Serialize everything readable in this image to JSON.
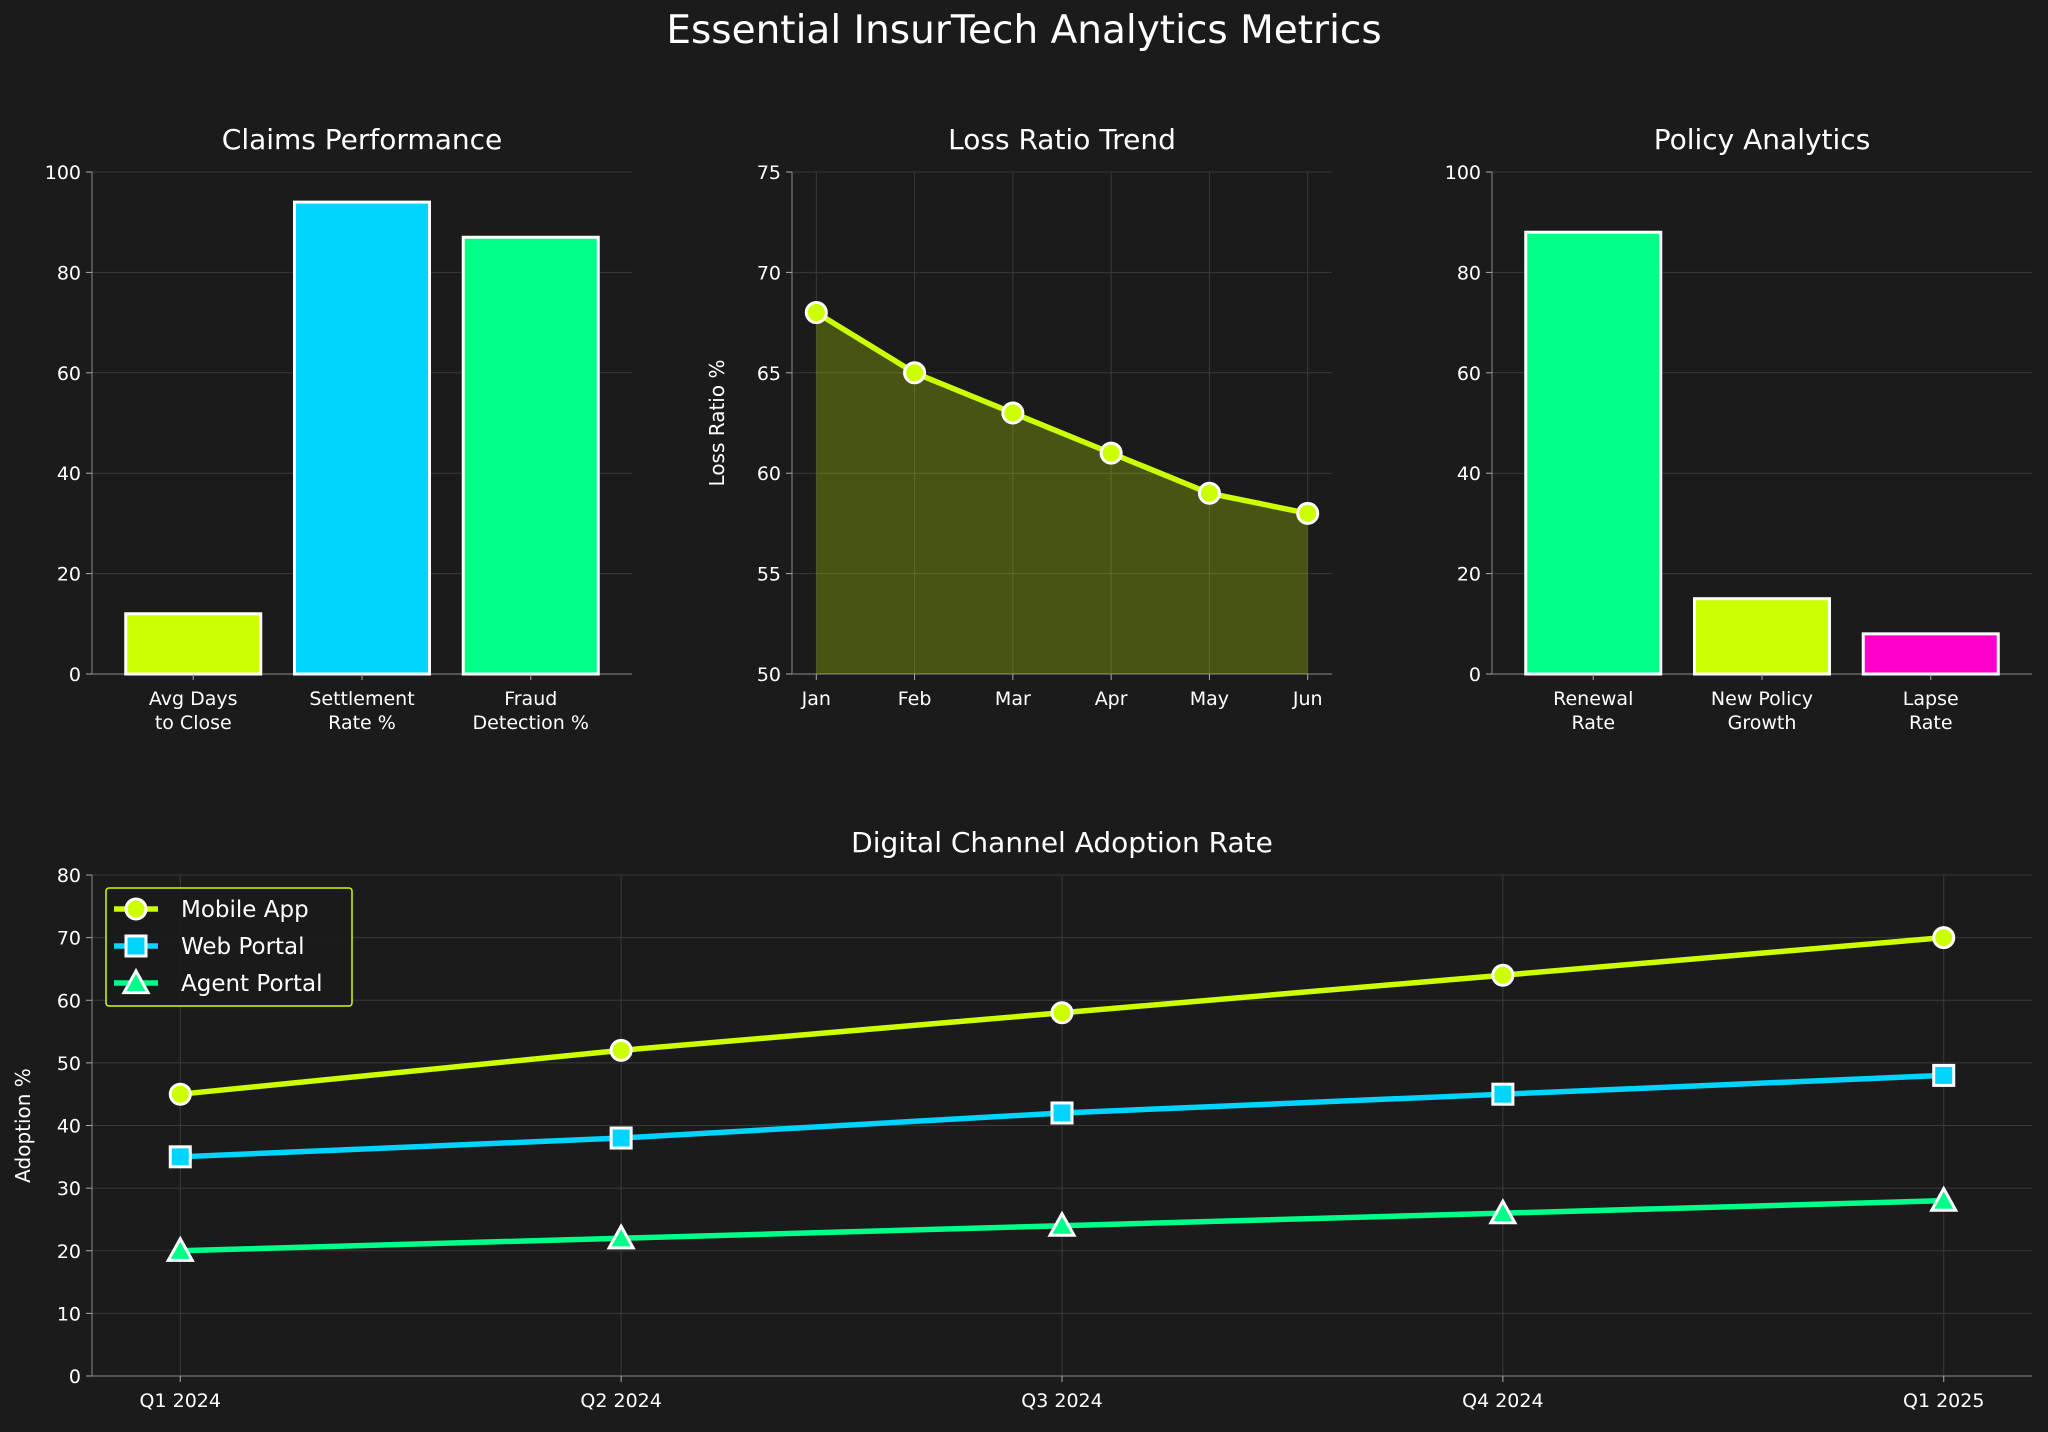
{
  "figure_title": "Essential InsurTech Analytics Metrics",
  "colors": {
    "background": "#1b1b1b",
    "lime": "#ccff00",
    "cyan": "#00d4ff",
    "green": "#00ff88",
    "magenta": "#ff00cc",
    "grid": "#3a3a3a",
    "spine": "#666666"
  },
  "chart_data": [
    {
      "type": "bar",
      "title": "Claims Performance",
      "xlabel": "",
      "ylabel": "",
      "categories": [
        "Avg Days\nto Close",
        "Settlement\nRate %",
        "Fraud\nDetection %"
      ],
      "values": [
        12,
        94,
        87
      ],
      "bar_colors": [
        "#ccff00",
        "#00d4ff",
        "#00ff88"
      ],
      "ylim": [
        0,
        100
      ],
      "yticks": [
        0,
        20,
        40,
        60,
        80,
        100
      ],
      "grid": true
    },
    {
      "type": "area",
      "title": "Loss Ratio Trend",
      "xlabel": "",
      "ylabel": "Loss Ratio %",
      "categories": [
        "Jan",
        "Feb",
        "Mar",
        "Apr",
        "May",
        "Jun"
      ],
      "values": [
        68,
        65,
        63,
        61,
        59,
        58
      ],
      "color": "#ccff00",
      "ylim": [
        50,
        75
      ],
      "yticks": [
        50,
        55,
        60,
        65,
        70,
        75
      ],
      "grid": true
    },
    {
      "type": "bar",
      "title": "Policy Analytics",
      "xlabel": "",
      "ylabel": "",
      "categories": [
        "Renewal\nRate",
        "New Policy\nGrowth",
        "Lapse\nRate"
      ],
      "values": [
        88,
        15,
        8
      ],
      "bar_colors": [
        "#00ff88",
        "#ccff00",
        "#ff00cc"
      ],
      "ylim": [
        0,
        100
      ],
      "yticks": [
        0,
        20,
        40,
        60,
        80,
        100
      ],
      "grid": true
    },
    {
      "type": "line",
      "title": "Digital Channel Adoption Rate",
      "xlabel": "",
      "ylabel": "Adoption %",
      "categories": [
        "Q1 2024",
        "Q2 2024",
        "Q3 2024",
        "Q4 2024",
        "Q1 2025"
      ],
      "series": [
        {
          "name": "Mobile App",
          "values": [
            45,
            52,
            58,
            64,
            70
          ],
          "color": "#ccff00",
          "marker": "circle"
        },
        {
          "name": "Web Portal",
          "values": [
            35,
            38,
            42,
            45,
            48
          ],
          "color": "#00d4ff",
          "marker": "square"
        },
        {
          "name": "Agent Portal",
          "values": [
            20,
            22,
            24,
            26,
            28
          ],
          "color": "#00ff88",
          "marker": "triangle"
        }
      ],
      "ylim": [
        0,
        80
      ],
      "yticks": [
        0,
        10,
        20,
        30,
        40,
        50,
        60,
        70,
        80
      ],
      "legend": "top-left",
      "grid": true
    }
  ]
}
